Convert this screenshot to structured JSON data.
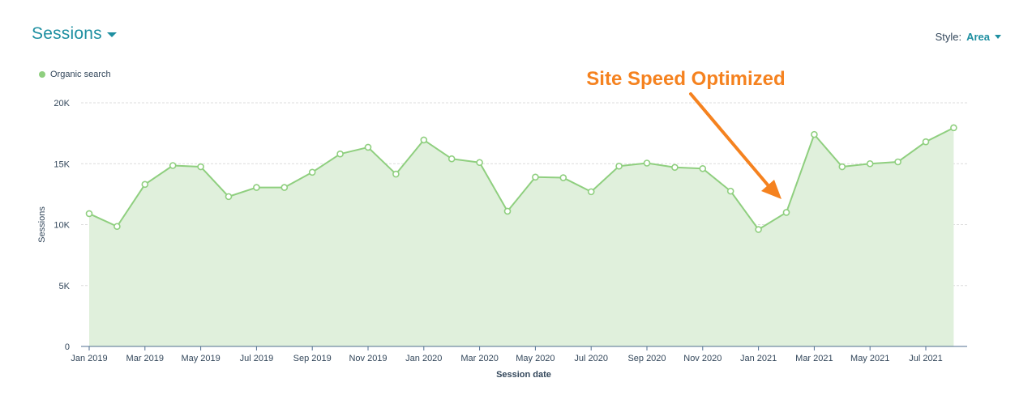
{
  "header": {
    "title": "Sessions"
  },
  "style_control": {
    "label": "Style:",
    "value": "Area"
  },
  "colors": {
    "series_line": "#8fcf7f",
    "series_fill": "#e0f0dc",
    "annotation": "#f5821f",
    "axis_text": "#33475b",
    "grid": "#dcdcdc",
    "accent": "#1e8fa1"
  },
  "chart_data": {
    "type": "area",
    "legend": {
      "entries": [
        "Organic search"
      ],
      "position": "top-left"
    },
    "xlabel": "Session date",
    "ylabel": "Sessions",
    "ylim": [
      0,
      20000
    ],
    "y_ticks": [
      0,
      5000,
      10000,
      15000,
      20000
    ],
    "y_tick_labels": [
      "0",
      "5K",
      "10K",
      "15K",
      "20K"
    ],
    "x_tick_labels": [
      "Jan 2019",
      "Mar 2019",
      "May 2019",
      "Jul 2019",
      "Sep 2019",
      "Nov 2019",
      "Jan 2020",
      "Mar 2020",
      "May 2020",
      "Jul 2020",
      "Sep 2020",
      "Nov 2020",
      "Jan 2021",
      "Mar 2021",
      "May 2021",
      "Jul 2021"
    ],
    "grid": true,
    "categories": [
      "Jan 2019",
      "Feb 2019",
      "Mar 2019",
      "Apr 2019",
      "May 2019",
      "Jun 2019",
      "Jul 2019",
      "Aug 2019",
      "Sep 2019",
      "Oct 2019",
      "Nov 2019",
      "Dec 2019",
      "Jan 2020",
      "Feb 2020",
      "Mar 2020",
      "Apr 2020",
      "May 2020",
      "Jun 2020",
      "Jul 2020",
      "Aug 2020",
      "Sep 2020",
      "Oct 2020",
      "Nov 2020",
      "Dec 2020",
      "Jan 2021",
      "Feb 2021",
      "Mar 2021",
      "Apr 2021",
      "May 2021",
      "Jun 2021",
      "Jul 2021",
      "Aug 2021"
    ],
    "series": [
      {
        "name": "Organic search",
        "values": [
          10900,
          9850,
          13300,
          14850,
          14750,
          12300,
          13050,
          13050,
          14300,
          15800,
          16350,
          14150,
          16950,
          15400,
          15100,
          11100,
          13900,
          13850,
          12700,
          14800,
          15050,
          14700,
          14600,
          12750,
          9600,
          11000,
          17400,
          14750,
          15000,
          15150,
          16800,
          17950
        ]
      }
    ],
    "annotation": {
      "text": "Site Speed Optimized",
      "target": "Feb 2021"
    }
  }
}
